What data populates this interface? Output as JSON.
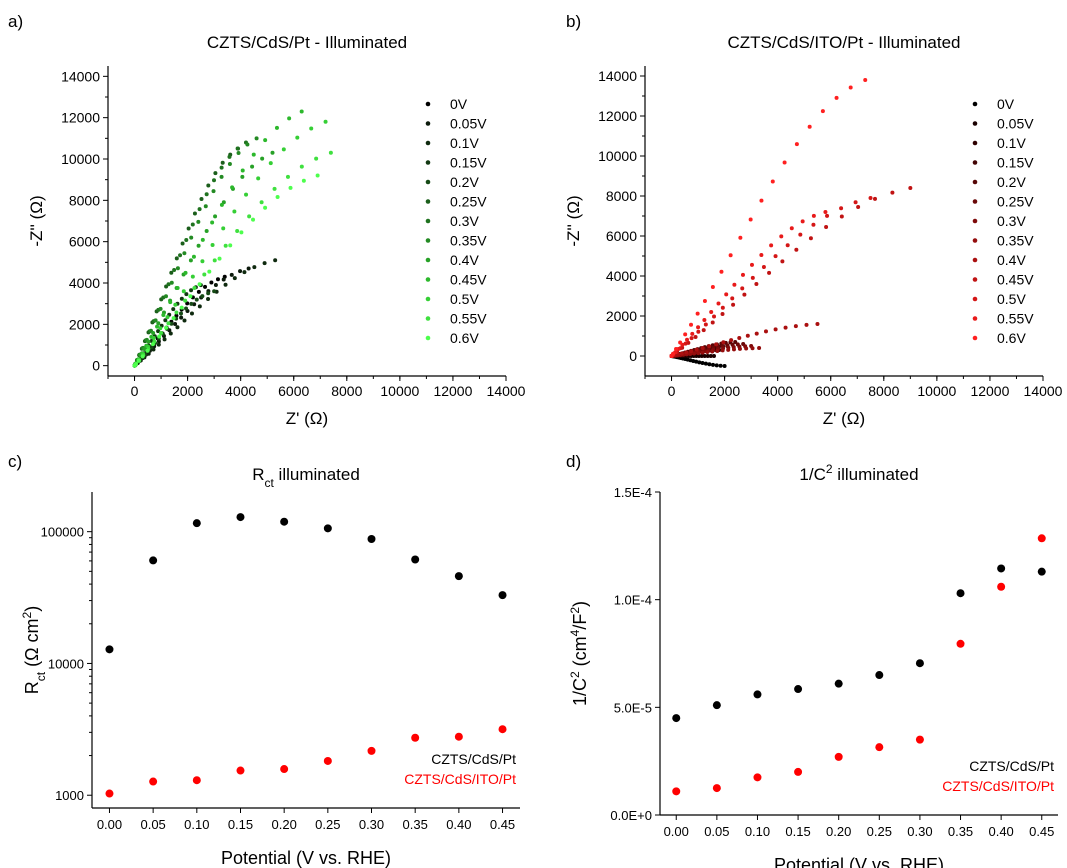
{
  "panels": {
    "a": "a)",
    "b": "b)",
    "c": "c)",
    "d": "d)"
  },
  "chart_data": [
    {
      "type": "scatter",
      "title": "CZTS/CdS/Pt - Illuminated",
      "xlabel": "Z' (Ω)",
      "ylabel": "-Z'' (Ω)",
      "xlim": [
        -1000,
        14000
      ],
      "ylim": [
        -500,
        14500
      ],
      "xticks": [
        0,
        2000,
        4000,
        6000,
        8000,
        10000,
        12000,
        14000
      ],
      "yticks": [
        0,
        2000,
        4000,
        6000,
        8000,
        10000,
        12000,
        14000
      ],
      "legend_position": "right",
      "series": [
        {
          "name": "0V",
          "color": "#000000",
          "endpoint": [
            3400,
            4300
          ]
        },
        {
          "name": "0.05V",
          "color": "#0c1a0c",
          "endpoint": [
            4300,
            4700
          ]
        },
        {
          "name": "0.1V",
          "color": "#0f2a0f",
          "endpoint": [
            5300,
            5100
          ]
        },
        {
          "name": "0.15V",
          "color": "#123812",
          "endpoint": [
            2500,
            3900
          ]
        },
        {
          "name": "0.2V",
          "color": "#164a16",
          "endpoint": [
            3000,
            3600
          ]
        },
        {
          "name": "0.25V",
          "color": "#1b5e1b",
          "endpoint": [
            3900,
            10500
          ]
        },
        {
          "name": "0.3V",
          "color": "#1f721f",
          "endpoint": [
            4200,
            10800
          ]
        },
        {
          "name": "0.35V",
          "color": "#238a23",
          "endpoint": [
            4600,
            11000
          ]
        },
        {
          "name": "0.4V",
          "color": "#27a127",
          "endpoint": [
            5200,
            10300
          ]
        },
        {
          "name": "0.45V",
          "color": "#2cb82c",
          "endpoint": [
            6300,
            12300
          ]
        },
        {
          "name": "0.5V",
          "color": "#35cf35",
          "endpoint": [
            7200,
            11800
          ]
        },
        {
          "name": "0.55V",
          "color": "#3fe03f",
          "endpoint": [
            7400,
            10300
          ]
        },
        {
          "name": "0.6V",
          "color": "#4dff4d",
          "endpoint": [
            6900,
            9200
          ]
        }
      ]
    },
    {
      "type": "scatter",
      "title": "CZTS/CdS/ITO/Pt - Illuminated",
      "xlabel": "Z' (Ω)",
      "ylabel": "-Z'' (Ω)",
      "xlim": [
        -1000,
        14000
      ],
      "ylim": [
        -1000,
        14500
      ],
      "xticks": [
        0,
        2000,
        4000,
        6000,
        8000,
        10000,
        12000,
        14000
      ],
      "yticks": [
        0,
        2000,
        4000,
        6000,
        8000,
        10000,
        12000,
        14000
      ],
      "legend_position": "right",
      "series": [
        {
          "name": "0V",
          "color": "#000000",
          "endpoint": [
            2000,
            -500
          ]
        },
        {
          "name": "0.05V",
          "color": "#1a0000",
          "endpoint": [
            1600,
            0
          ]
        },
        {
          "name": "0.1V",
          "color": "#2e0000",
          "endpoint": [
            1800,
            300
          ]
        },
        {
          "name": "0.15V",
          "color": "#420303",
          "endpoint": [
            2100,
            500
          ]
        },
        {
          "name": "0.2V",
          "color": "#560606",
          "endpoint": [
            2400,
            700
          ]
        },
        {
          "name": "0.25V",
          "color": "#6a0808",
          "endpoint": [
            2700,
            600
          ]
        },
        {
          "name": "0.3V",
          "color": "#7e0a0a",
          "endpoint": [
            3000,
            500
          ]
        },
        {
          "name": "0.35V",
          "color": "#940d0d",
          "endpoint": [
            3300,
            400
          ]
        },
        {
          "name": "0.4V",
          "color": "#aa1010",
          "endpoint": [
            5500,
            1600
          ]
        },
        {
          "name": "0.45V",
          "color": "#c01313",
          "endpoint": [
            9000,
            8400
          ]
        },
        {
          "name": "0.5V",
          "color": "#d41616",
          "endpoint": [
            7500,
            7900
          ]
        },
        {
          "name": "0.55V",
          "color": "#e81a1a",
          "endpoint": [
            5800,
            7200
          ]
        },
        {
          "name": "0.6V",
          "color": "#ff2020",
          "endpoint": [
            7300,
            13800
          ]
        }
      ]
    },
    {
      "type": "scatter",
      "title_main": "R",
      "title_sub": "ct",
      "title_rest": " illuminated",
      "ylabel_main": "R",
      "ylabel_sub": "ct",
      "ylabel_rest": " (Ω cm",
      "ylabel_sup": "2",
      "ylabel_end": ")",
      "xlabel": "Potential (V vs. RHE)",
      "yscale": "log",
      "ylim": [
        800,
        200000
      ],
      "xlim": [
        -0.02,
        0.47
      ],
      "xticks": [
        "0.00",
        "0.05",
        "0.10",
        "0.15",
        "0.20",
        "0.25",
        "0.30",
        "0.35",
        "0.40",
        "0.45"
      ],
      "yticks": [
        {
          "value": 1000,
          "label": "1000"
        },
        {
          "value": 10000,
          "label": "10000"
        },
        {
          "value": 100000,
          "label": "100000"
        }
      ],
      "legend_position": "bottom-right",
      "x": [
        0.0,
        0.05,
        0.1,
        0.15,
        0.2,
        0.25,
        0.3,
        0.35,
        0.4,
        0.45
      ],
      "series": [
        {
          "name": "CZTS/CdS/Pt",
          "color": "#000000",
          "values": [
            12800,
            60500,
            116000,
            129000,
            119000,
            106000,
            88000,
            61500,
            46000,
            33000
          ]
        },
        {
          "name": "CZTS/CdS/ITO/Pt",
          "color": "#ff0000",
          "values": [
            1030,
            1270,
            1300,
            1540,
            1580,
            1820,
            2170,
            2730,
            2780,
            3170
          ]
        }
      ]
    },
    {
      "type": "scatter",
      "title_main": "1/C",
      "title_sup": "2",
      "title_rest": " illuminated",
      "ylabel_main": "1/C",
      "ylabel_sup": "2",
      "ylabel_mid": " (cm",
      "ylabel_sup2": "4",
      "ylabel_end": "/F",
      "ylabel_sup3": "2",
      "ylabel_close": ")",
      "xlabel": "Potential (V vs. RHE)",
      "ylim": [
        0,
        0.00015
      ],
      "xlim": [
        -0.02,
        0.47
      ],
      "xticks": [
        "0.00",
        "0.05",
        "0.10",
        "0.15",
        "0.20",
        "0.25",
        "0.30",
        "0.35",
        "0.40",
        "0.45"
      ],
      "yticks": [
        {
          "value": 0,
          "label": "0.0E+0"
        },
        {
          "value": 5e-05,
          "label": "5.0E-5"
        },
        {
          "value": 0.0001,
          "label": "1.0E-4"
        },
        {
          "value": 0.00015,
          "label": "1.5E-4"
        }
      ],
      "legend_position": "bottom-right",
      "x": [
        0.0,
        0.05,
        0.1,
        0.15,
        0.2,
        0.25,
        0.3,
        0.35,
        0.4,
        0.45
      ],
      "series": [
        {
          "name": "CZTS/CdS/Pt",
          "color": "#000000",
          "values": [
            4.5e-05,
            5.1e-05,
            5.6e-05,
            5.85e-05,
            6.1e-05,
            6.5e-05,
            7.05e-05,
            0.000103,
            0.0001145,
            0.000113
          ]
        },
        {
          "name": "CZTS/CdS/ITO/Pt",
          "color": "#ff0000",
          "values": [
            1.1e-05,
            1.25e-05,
            1.75e-05,
            2e-05,
            2.7e-05,
            3.15e-05,
            3.5e-05,
            7.95e-05,
            0.000106,
            0.0001285
          ]
        }
      ]
    }
  ]
}
